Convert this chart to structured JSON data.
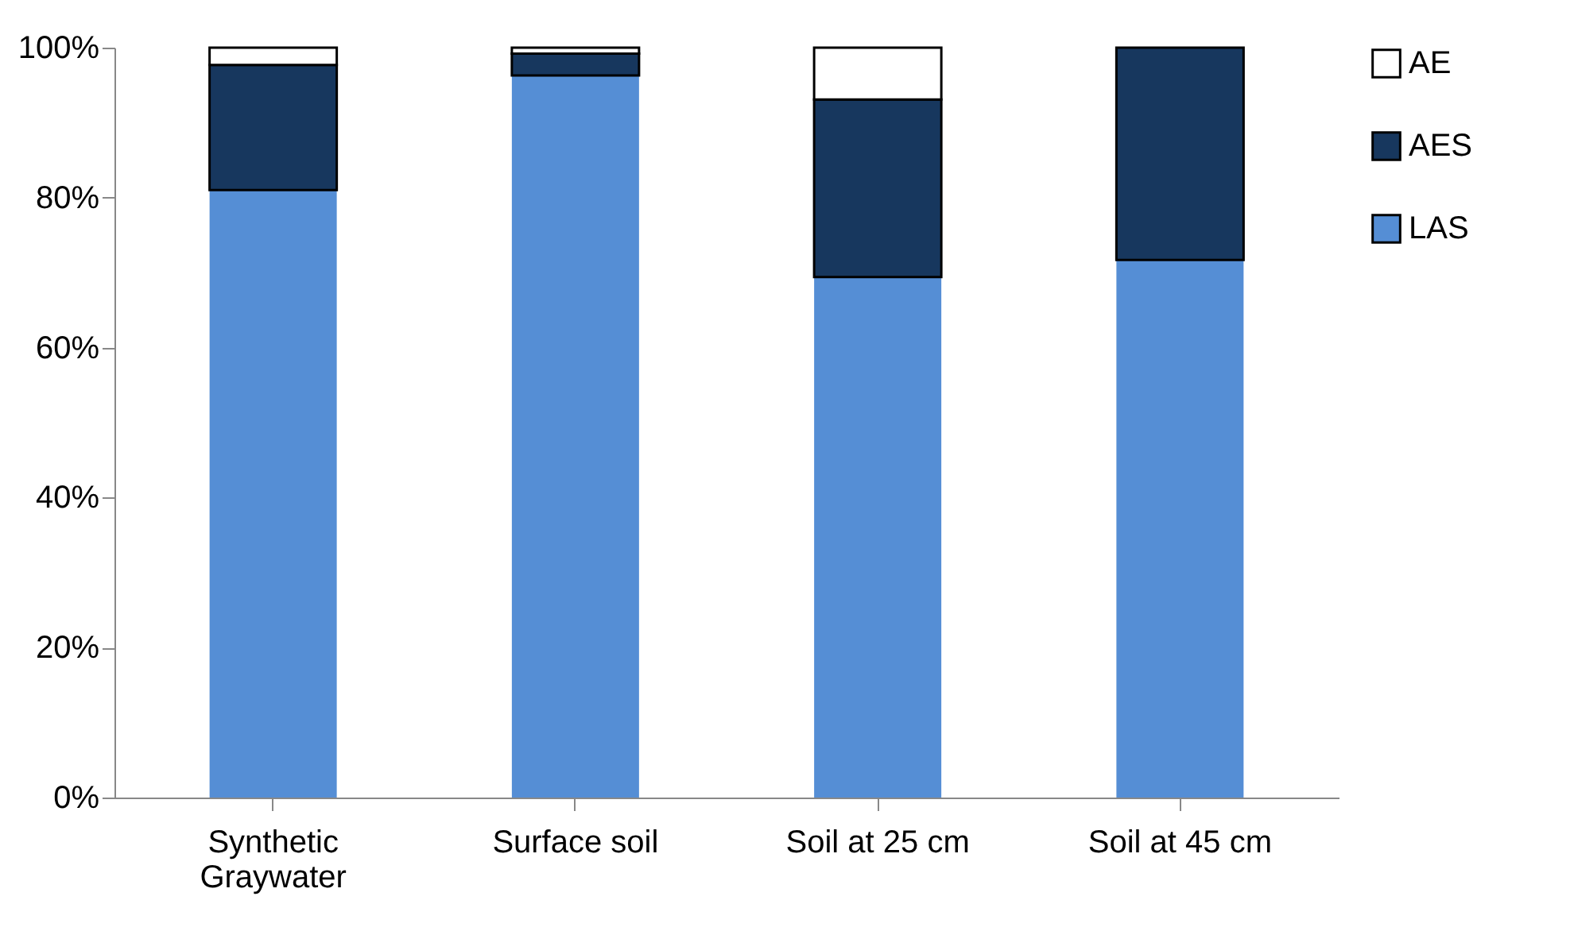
{
  "chart_data": {
    "type": "bar",
    "stacked": true,
    "categories": [
      "Synthetic Graywater",
      "Surface soil",
      "Soil at 25 cm",
      "Soil at 45 cm"
    ],
    "series": [
      {
        "name": "LAS",
        "color": "#558ed5",
        "values": [
          81,
          96.3,
          69.4,
          71.7
        ]
      },
      {
        "name": "AES",
        "color": "#17375e",
        "values": [
          16.7,
          2.9,
          23.7,
          28.3
        ]
      },
      {
        "name": "AE",
        "color": "#ffffff",
        "values": [
          2.3,
          0.8,
          6.9,
          null
        ]
      }
    ],
    "ylim": [
      0,
      100
    ],
    "yticks": [
      {
        "value": 0,
        "label": "0%"
      },
      {
        "value": 20,
        "label": "20%"
      },
      {
        "value": 40,
        "label": "40%"
      },
      {
        "value": 60,
        "label": "60%"
      },
      {
        "value": 80,
        "label": "80%"
      },
      {
        "value": 100,
        "label": "100%"
      }
    ],
    "grid": false,
    "legend": "right"
  }
}
